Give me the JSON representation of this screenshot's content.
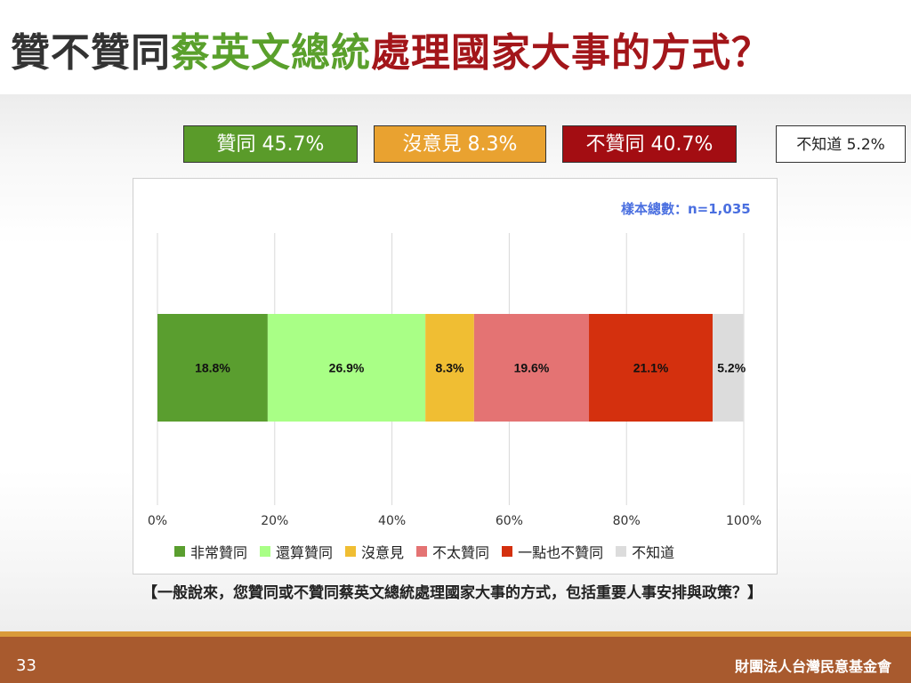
{
  "title": {
    "part1": "贊不贊同",
    "part2": "蔡英文總統",
    "part3": "處理國家大事的方式？"
  },
  "summary": {
    "agree": "贊同 45.7%",
    "no_opinion": "沒意見 8.3%",
    "disagree": "不贊同 40.7%",
    "dont_know": "不知道 5.2%"
  },
  "sample_size": "樣本總數：n=1,035",
  "question": "【一般說來，您贊同或不贊同蔡英文總統處理國家大事的方式，包括重要人事安排與政策？】",
  "footer": {
    "page_number": "33",
    "organization": "財團法人台灣民意基金會"
  },
  "colors": {
    "agree_box": "#5a9b2a",
    "no_opinion_box": "#e9a230",
    "disagree_box": "#a30d12"
  },
  "chart_data": {
    "type": "bar",
    "orientation": "horizontal-stacked",
    "title": "",
    "xlabel": "",
    "ylabel": "",
    "xlim": [
      0,
      100
    ],
    "x_ticks": [
      "0%",
      "20%",
      "40%",
      "60%",
      "80%",
      "100%"
    ],
    "grid": true,
    "legend_position": "bottom",
    "series": [
      {
        "name": "非常贊同",
        "value": 18.8,
        "label": "18.8%",
        "color": "#5a9e2f"
      },
      {
        "name": "還算贊同",
        "value": 26.9,
        "label": "26.9%",
        "color": "#a9ff86"
      },
      {
        "name": "沒意見",
        "value": 8.3,
        "label": "8.3%",
        "color": "#f0be33"
      },
      {
        "name": "不太贊同",
        "value": 19.6,
        "label": "19.6%",
        "color": "#e47373"
      },
      {
        "name": "一點也不贊同",
        "value": 21.1,
        "label": "21.1%",
        "color": "#d4300e"
      },
      {
        "name": "不知道",
        "value": 5.2,
        "label": "5.2%",
        "color": "#dcdcdc"
      }
    ]
  }
}
